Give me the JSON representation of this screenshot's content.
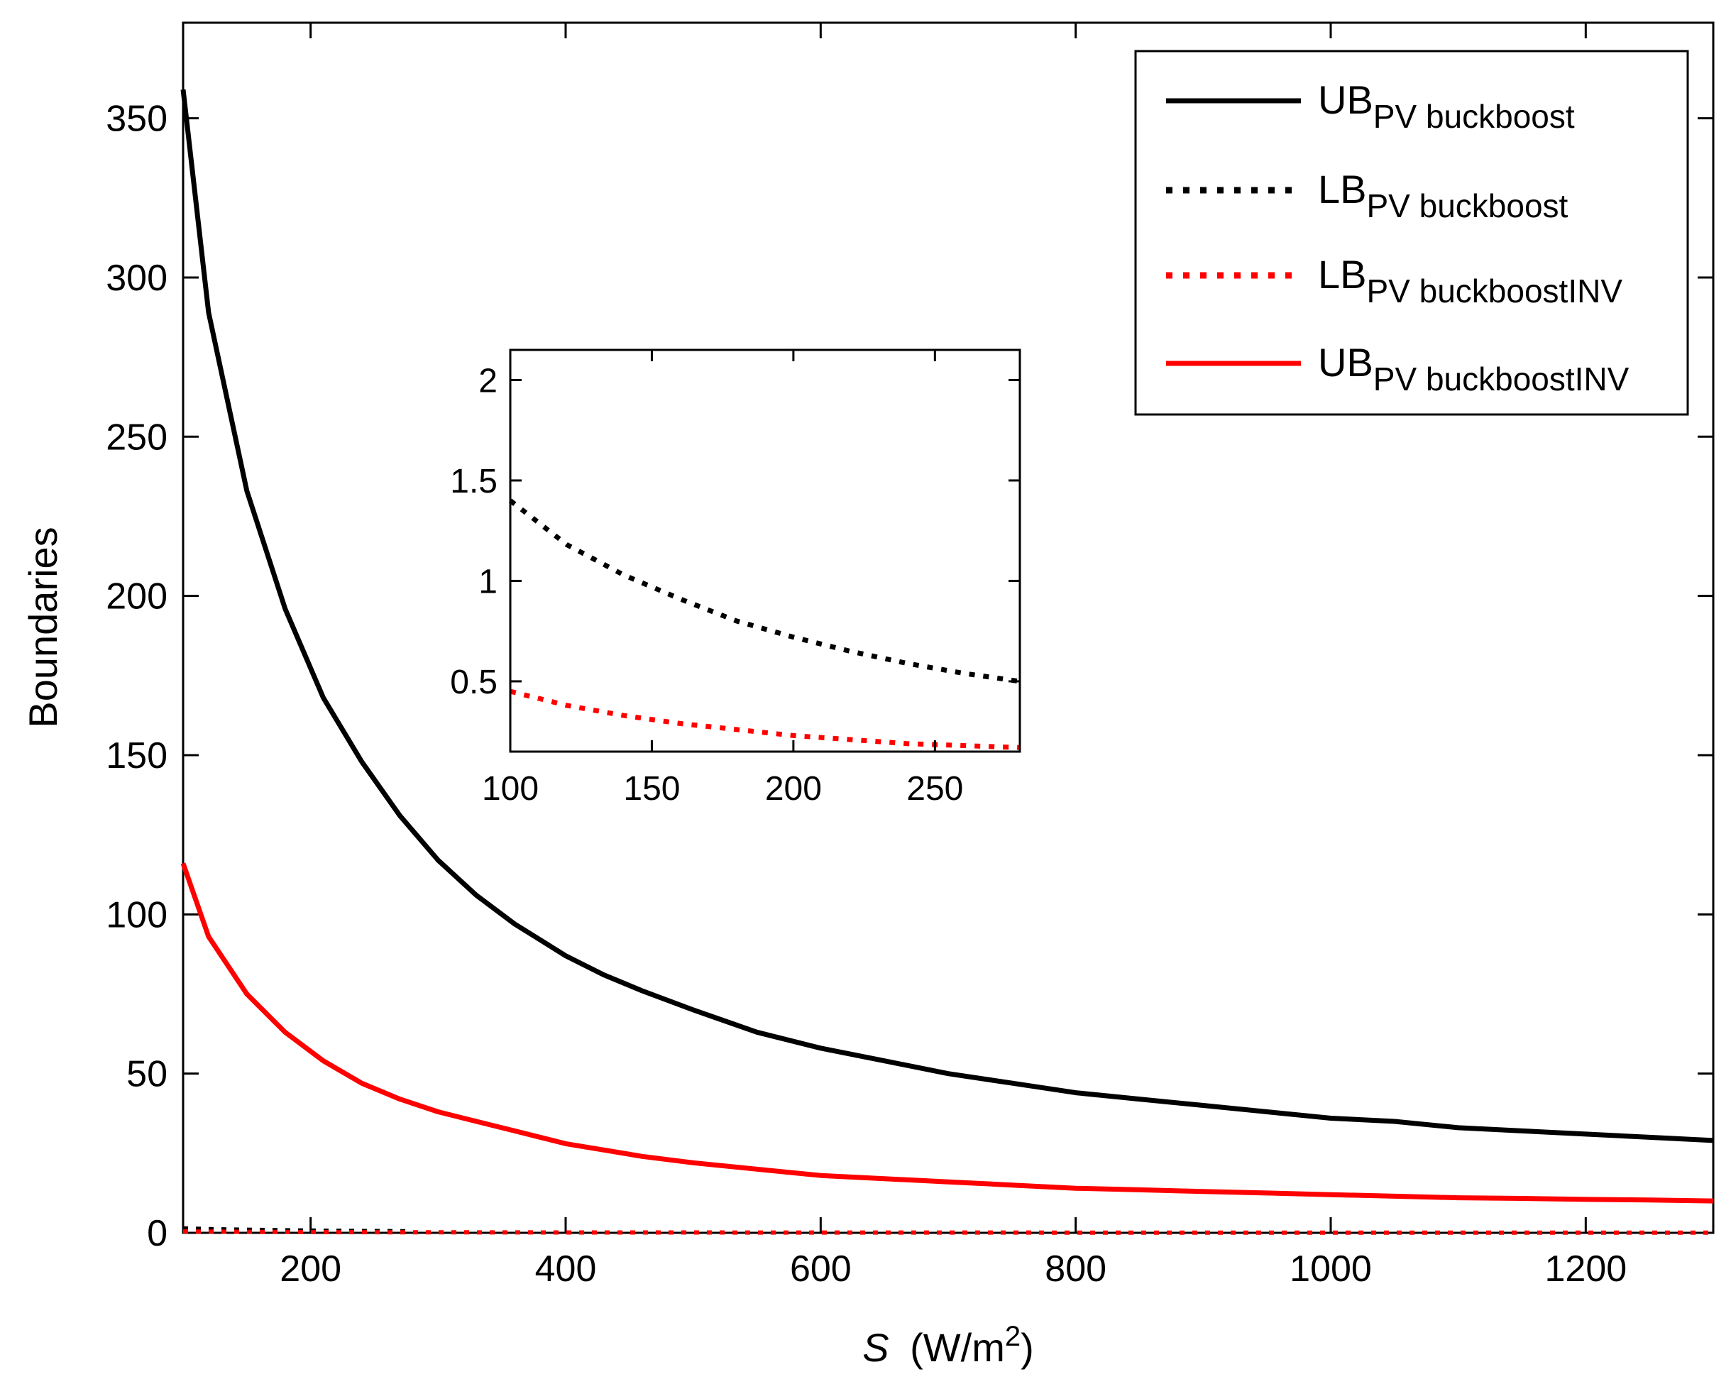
{
  "chart_data": {
    "type": "line",
    "title": "",
    "xlabel_var": "S",
    "xlabel_unit": "(W/m",
    "xlabel_sup": "2",
    "xlabel_close": ")",
    "ylabel": "Boundaries",
    "xlim": [
      100,
      1300
    ],
    "ylim": [
      0,
      380
    ],
    "xticks": [
      200,
      400,
      600,
      800,
      1000,
      1200
    ],
    "yticks": [
      0,
      50,
      100,
      150,
      200,
      250,
      300,
      350
    ],
    "legend_position": "top-right",
    "series": [
      {
        "name": "UB",
        "subscript": "PV buckboost",
        "color": "#000000",
        "style": "solid",
        "x": [
          100,
          120,
          150,
          180,
          210,
          240,
          270,
          300,
          330,
          360,
          400,
          430,
          460,
          500,
          550,
          600,
          650,
          700,
          750,
          800,
          850,
          900,
          950,
          1000,
          1050,
          1100,
          1150,
          1200,
          1250,
          1300
        ],
        "y": [
          359,
          289,
          233,
          196,
          168,
          148,
          131,
          117,
          106,
          97,
          87,
          81,
          76,
          70,
          63,
          58,
          54,
          50,
          47,
          44,
          42,
          40,
          38,
          36,
          35,
          33,
          32,
          31,
          30,
          29
        ]
      },
      {
        "name": "LB",
        "subscript": "PV buckboost",
        "color": "#000000",
        "style": "dotted",
        "x": [
          100,
          120,
          140,
          160,
          180,
          200,
          220,
          240,
          260,
          280
        ],
        "y": [
          1.4,
          1.18,
          1.03,
          0.91,
          0.8,
          0.72,
          0.65,
          0.59,
          0.54,
          0.5
        ]
      },
      {
        "name": "LB",
        "subscript": "PV buckboostINV",
        "color": "#ff0000",
        "style": "dotted",
        "x": [
          100,
          120,
          140,
          160,
          180,
          200,
          220,
          240,
          260,
          280,
          400,
          600,
          800,
          1000,
          1200,
          1300
        ],
        "y": [
          0.45,
          0.38,
          0.33,
          0.29,
          0.26,
          0.23,
          0.21,
          0.19,
          0.18,
          0.17,
          0.12,
          0.08,
          0.06,
          0.05,
          0.04,
          0.035
        ]
      },
      {
        "name": "UB",
        "subscript": "PV buckboostINV",
        "color": "#ff0000",
        "style": "solid",
        "x": [
          100,
          120,
          150,
          180,
          210,
          240,
          270,
          300,
          330,
          360,
          400,
          430,
          460,
          500,
          550,
          600,
          650,
          700,
          750,
          800,
          850,
          900,
          950,
          1000,
          1050,
          1100,
          1150,
          1200,
          1250,
          1300
        ],
        "y": [
          116,
          93,
          75,
          63,
          54,
          47,
          42,
          38,
          35,
          32,
          28,
          26,
          24,
          22,
          20,
          18,
          17,
          16,
          15,
          14,
          13.5,
          13,
          12.5,
          12,
          11.5,
          11,
          10.8,
          10.5,
          10.3,
          10
        ]
      }
    ],
    "inset": {
      "xlim": [
        100,
        280
      ],
      "ylim": [
        0.15,
        2.15
      ],
      "xticks": [
        100,
        150,
        200,
        250
      ],
      "ytick_values": [
        0.5,
        1,
        1.5,
        2
      ],
      "ytick_labels": [
        "0.5",
        "1",
        "1.5",
        "2"
      ],
      "series_indices": [
        1,
        2
      ]
    }
  }
}
